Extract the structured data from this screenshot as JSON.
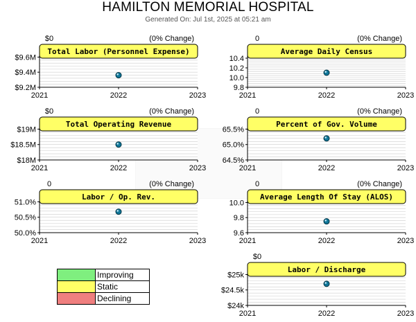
{
  "header": {
    "title": "HAMILTON MEMORIAL HOSPITAL",
    "generated": "Generated On: Jul 1st, 2025 at 05:21 am"
  },
  "legend": [
    {
      "label": "Improving",
      "color": "#7fef7f"
    },
    {
      "label": "Static",
      "color": "#ffff66"
    },
    {
      "label": "Declining",
      "color": "#ef7f7f"
    }
  ],
  "chart_data": [
    {
      "type": "scatter",
      "title": "Total Labor (Personnel Expense)",
      "change_value": "$0",
      "change_pct": "(0% Change)",
      "x_ticks": [
        "2021",
        "2022",
        "2023"
      ],
      "y_ticks": [
        "$9.6M",
        "$9.4M",
        "$9.2M"
      ],
      "y_tick_values": [
        9.6,
        9.4,
        9.2
      ],
      "ylim": [
        9.2,
        9.65
      ],
      "points": [
        {
          "x": "2022",
          "y": 9.36
        }
      ],
      "status": "Static"
    },
    {
      "type": "scatter",
      "title": "Average Daily Census",
      "change_value": "0",
      "change_pct": "(0% Change)",
      "x_ticks": [
        "2021",
        "2022",
        "2023"
      ],
      "y_ticks": [
        "10.4",
        "10.2",
        "10.0",
        "9.8"
      ],
      "y_tick_values": [
        10.4,
        10.2,
        10.0,
        9.8
      ],
      "ylim": [
        9.8,
        10.5
      ],
      "points": [
        {
          "x": "2022",
          "y": 10.1
        }
      ],
      "status": "Static"
    },
    {
      "type": "scatter",
      "title": "Total Operating Revenue",
      "change_value": "$0",
      "change_pct": "(0% Change)",
      "x_ticks": [
        "2021",
        "2022",
        "2023"
      ],
      "y_ticks": [
        "$19M",
        "$18.5M",
        "$18M"
      ],
      "y_tick_values": [
        19,
        18.5,
        18
      ],
      "ylim": [
        18,
        19.1
      ],
      "points": [
        {
          "x": "2022",
          "y": 18.5
        }
      ],
      "status": "Static"
    },
    {
      "type": "scatter",
      "title": "Percent of Gov. Volume",
      "change_value": "0",
      "change_pct": "(0% Change)",
      "x_ticks": [
        "2021",
        "2022",
        "2023"
      ],
      "y_ticks": [
        "65.5%",
        "65.0%",
        "64.5%"
      ],
      "y_tick_values": [
        65.5,
        65.0,
        64.5
      ],
      "ylim": [
        64.5,
        65.6
      ],
      "points": [
        {
          "x": "2022",
          "y": 65.2
        }
      ],
      "status": "Static"
    },
    {
      "type": "scatter",
      "title": "Labor / Op. Rev.",
      "change_value": "0",
      "change_pct": "(0% Change)",
      "x_ticks": [
        "2021",
        "2022",
        "2023"
      ],
      "y_ticks": [
        "51.0%",
        "50.5%",
        "50.0%"
      ],
      "y_tick_values": [
        51.0,
        50.5,
        50.0
      ],
      "ylim": [
        50.0,
        51.1
      ],
      "points": [
        {
          "x": "2022",
          "y": 50.68
        }
      ],
      "status": "Static"
    },
    {
      "type": "scatter",
      "title": "Average Length Of Stay (ALOS)",
      "change_value": "0",
      "change_pct": "(0% Change)",
      "x_ticks": [
        "2021",
        "2022",
        "2023"
      ],
      "y_ticks": [
        "10.0",
        "9.8",
        "9.6"
      ],
      "y_tick_values": [
        10.0,
        9.8,
        9.6
      ],
      "ylim": [
        9.6,
        10.05
      ],
      "points": [
        {
          "x": "2022",
          "y": 9.75
        }
      ],
      "status": "Static"
    },
    {
      "type": "scatter",
      "title": "Labor / Discharge",
      "change_value": "$0",
      "change_pct": "",
      "x_ticks": [
        "2021",
        "2022",
        "2023"
      ],
      "y_ticks": [
        "$25k",
        "$24.5k",
        "$24k"
      ],
      "y_tick_values": [
        25,
        24.5,
        24
      ],
      "ylim": [
        24,
        25.1
      ],
      "points": [
        {
          "x": "2022",
          "y": 24.7
        }
      ],
      "status": "Static"
    }
  ]
}
